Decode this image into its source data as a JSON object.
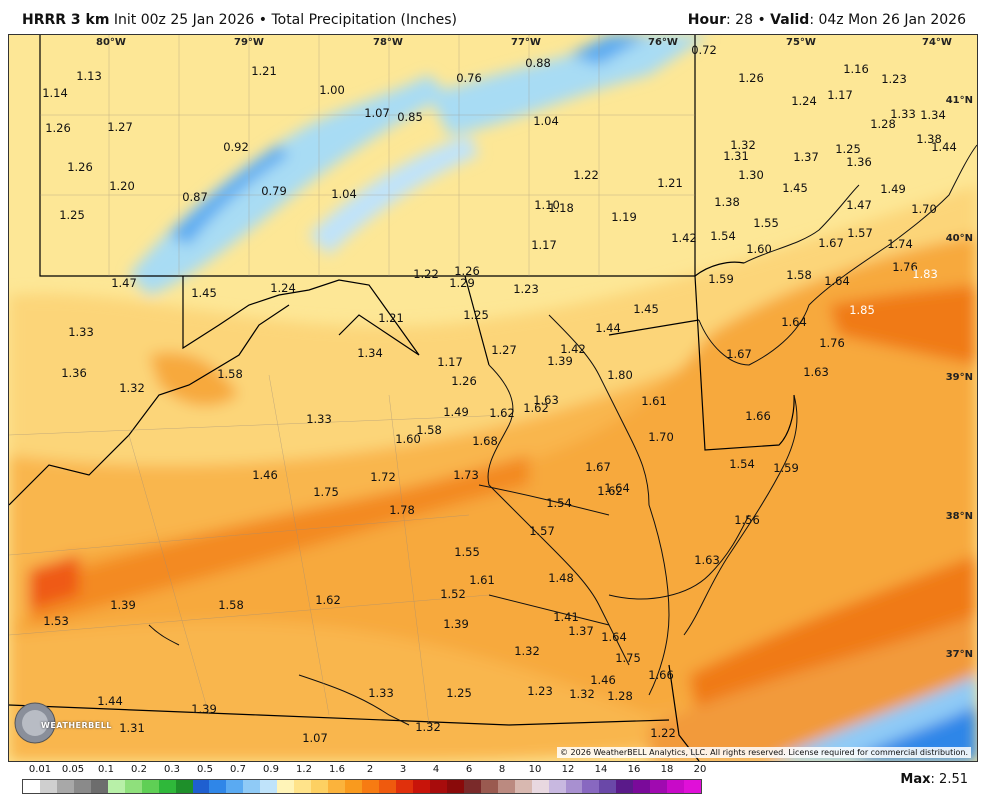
{
  "header": {
    "model": "HRRR 3 km",
    "init": "Init 00z 25 Jan 2026",
    "separator": "•",
    "product": "Total Precipitation (Inches)",
    "hour_label": "Hour",
    "hour_value": "28",
    "valid_label": "Valid",
    "valid_value": "04z Mon 26 Jan 2026"
  },
  "map": {
    "lon_labels": [
      "80°W",
      "79°W",
      "78°W",
      "77°W",
      "76°W",
      "75°W",
      "74°W"
    ],
    "lat_labels": [
      "41°N",
      "40°N",
      "39°N",
      "38°N",
      "37°N"
    ],
    "values": [
      "1.13",
      "1.14",
      "1.26",
      "1.27",
      "1.26",
      "1.20",
      "1.25",
      "1.21",
      "1.00",
      "1.07",
      "0.85",
      "0.76",
      "0.88",
      "0.72",
      "1.26",
      "1.16",
      "1.23",
      "1.24",
      "1.17",
      "1.34",
      "1.33",
      "1.28",
      "1.38",
      "1.44",
      "0.92",
      "0.87",
      "0.79",
      "1.04",
      "1.04",
      "1.32",
      "1.31",
      "1.37",
      "1.25",
      "1.36",
      "1.30",
      "1.22",
      "1.21",
      "1.38",
      "1.45",
      "1.49",
      "1.47",
      "1.70",
      "1.10",
      "1.18",
      "1.19",
      "1.42",
      "1.54",
      "1.55",
      "1.67",
      "1.57",
      "1.74",
      "1.17",
      "1.60",
      "1.76",
      "1.83",
      "1.47",
      "1.45",
      "1.24",
      "1.22",
      "1.26",
      "1.29",
      "1.23",
      "1.59",
      "1.58",
      "1.64",
      "1.85",
      "1.33",
      "1.21",
      "1.25",
      "1.44",
      "1.45",
      "1.64",
      "1.34",
      "1.27",
      "1.42",
      "1.17",
      "1.39",
      "1.76",
      "1.67",
      "1.36",
      "1.32",
      "1.58",
      "1.26",
      "1.63",
      "1.80",
      "1.63",
      "1.61",
      "1.33",
      "1.49",
      "1.62",
      "1.62",
      "1.66",
      "1.58",
      "1.68",
      "1.60",
      "1.70",
      "1.46",
      "1.72",
      "1.73",
      "1.67",
      "1.54",
      "1.59",
      "1.75",
      "1.62",
      "1.64",
      "1.54",
      "1.78",
      "1.57",
      "1.56",
      "1.55",
      "1.63",
      "1.61",
      "1.48",
      "1.39",
      "1.58",
      "1.62",
      "1.52",
      "1.53",
      "1.39",
      "1.41",
      "1.37",
      "1.64",
      "1.32",
      "1.75",
      "1.46",
      "1.66",
      "1.33",
      "1.25",
      "1.23",
      "1.32",
      "1.28",
      "1.44",
      "1.39",
      "1.31",
      "1.07",
      "1.32",
      "1.22"
    ],
    "copyright": "© 2026 WeatherBELL Analytics, LLC. All rights reserved. License required for commercial distribution.",
    "logo_text": "WEATHERBELL"
  },
  "legend": {
    "labels": [
      "0.01",
      "0.05",
      "0.1",
      "0.2",
      "0.3",
      "0.5",
      "0.7",
      "0.9",
      "1.2",
      "1.6",
      "2",
      "3",
      "4",
      "6",
      "8",
      "10",
      "12",
      "14",
      "16",
      "18",
      "20"
    ],
    "colors": [
      "#ffffff",
      "#cfcfcf",
      "#a8a8a8",
      "#8a8a8a",
      "#6d6d6d",
      "#b8f0a8",
      "#8fe07c",
      "#5fcf55",
      "#2fb83a",
      "#1e8f2a",
      "#1f5fd0",
      "#2f86e8",
      "#5aaaf2",
      "#8fcaf6",
      "#bfe3fa",
      "#fff4b8",
      "#ffe38a",
      "#fdd062",
      "#fbb33c",
      "#f99a1e",
      "#f77b12",
      "#ef5a0e",
      "#e0300c",
      "#c8140a",
      "#a80c0c",
      "#8a0a0a",
      "#7a2a2a",
      "#9a5a50",
      "#bb8a80",
      "#d8b8b0",
      "#e8d8e0",
      "#c8b8e0",
      "#a890d0",
      "#8868c0",
      "#6a48a8",
      "#5a1a8a",
      "#7a0a9a",
      "#a00ab0",
      "#c80ac8",
      "#e010d8"
    ],
    "max_label": "Max",
    "max_value": "2.51"
  }
}
